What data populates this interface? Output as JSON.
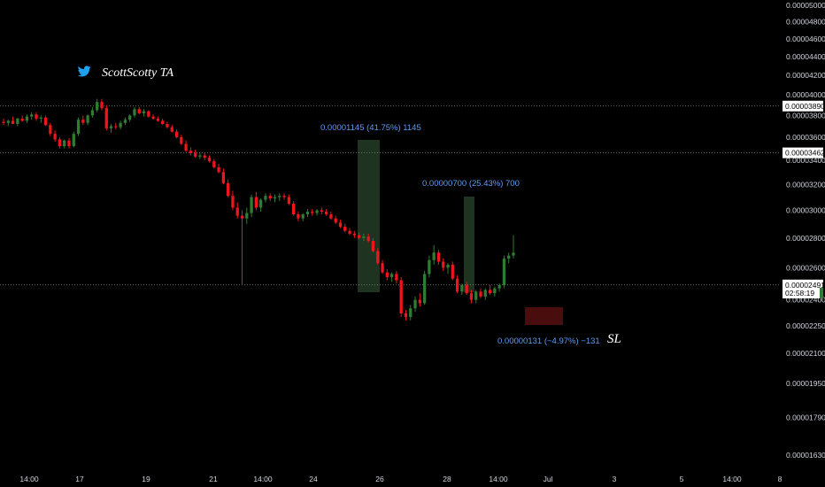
{
  "brand": {
    "name": "ScottScotty TA",
    "icon": "twitter-bird-icon",
    "icon_color": "#1da1f2"
  },
  "colors": {
    "up": "#2e7d32",
    "down": "#f2141c",
    "anno": "#5b9cf6",
    "zone_green": "#1e3320",
    "zone_red": "#4a0d0d"
  },
  "chart_data": {
    "type": "candlestick",
    "title": "",
    "xlabel": "",
    "ylabel": "",
    "y_axis_scale": "log",
    "y_ticks": [
      "0.00005000",
      "0.00004800",
      "0.00004600",
      "0.00004400",
      "0.00004200",
      "0.00004000",
      "0.00003800",
      "0.00003600",
      "0.00003400",
      "0.00003200",
      "0.00003000",
      "0.00002800",
      "0.00002600",
      "0.00002400",
      "0.00002250",
      "0.00002100",
      "0.00001950",
      "0.00001790",
      "0.00001630"
    ],
    "x_ticks": [
      "14:00",
      "17",
      "19",
      "21",
      "14:00",
      "24",
      "26",
      "28",
      "14:00",
      "Jul",
      "3",
      "5",
      "14:00",
      "8"
    ],
    "price_lines": [
      {
        "label": "0.00003890",
        "value": 3.89e-05
      },
      {
        "label": "0.00003462",
        "value": 3.462e-05
      },
      {
        "label": "0.00002491",
        "value": 2.491e-05
      }
    ],
    "current_time_label": "02:58:19",
    "annotations": [
      {
        "label": "0.00001145 (41.75%) 1145"
      },
      {
        "label": "0.00000700 (25.43%) 700"
      },
      {
        "label": "0.00000131 (−4.97%) −131"
      }
    ],
    "sl_label": "SL",
    "candles": [
      [
        3.74e-05,
        3.77e-05,
        3.71e-05,
        3.73e-05
      ],
      [
        3.73e-05,
        3.76e-05,
        3.7e-05,
        3.75e-05
      ],
      [
        3.75e-05,
        3.79e-05,
        3.72e-05,
        3.72e-05
      ],
      [
        3.72e-05,
        3.78e-05,
        3.7e-05,
        3.77e-05
      ],
      [
        3.77e-05,
        3.8e-05,
        3.74e-05,
        3.75e-05
      ],
      [
        3.75e-05,
        3.81e-05,
        3.73e-05,
        3.79e-05
      ],
      [
        3.79e-05,
        3.83e-05,
        3.76e-05,
        3.81e-05
      ],
      [
        3.81e-05,
        3.83e-05,
        3.75e-05,
        3.77e-05
      ],
      [
        3.77e-05,
        3.8e-05,
        3.73e-05,
        3.78e-05
      ],
      [
        3.78e-05,
        3.8e-05,
        3.7e-05,
        3.71e-05
      ],
      [
        3.71e-05,
        3.73e-05,
        3.61e-05,
        3.63e-05
      ],
      [
        3.63e-05,
        3.66e-05,
        3.56e-05,
        3.58e-05
      ],
      [
        3.58e-05,
        3.6e-05,
        3.5e-05,
        3.52e-05
      ],
      [
        3.52e-05,
        3.58e-05,
        3.5e-05,
        3.57e-05
      ],
      [
        3.57e-05,
        3.59e-05,
        3.5e-05,
        3.52e-05
      ],
      [
        3.52e-05,
        3.65e-05,
        3.51e-05,
        3.63e-05
      ],
      [
        3.63e-05,
        3.78e-05,
        3.61e-05,
        3.76e-05
      ],
      [
        3.76e-05,
        3.8e-05,
        3.71e-05,
        3.73e-05
      ],
      [
        3.73e-05,
        3.81e-05,
        3.71e-05,
        3.8e-05
      ],
      [
        3.8e-05,
        3.88e-05,
        3.78e-05,
        3.85e-05
      ],
      [
        3.85e-05,
        3.96e-05,
        3.83e-05,
        3.93e-05
      ],
      [
        3.93e-05,
        3.96e-05,
        3.85e-05,
        3.87e-05
      ],
      [
        3.87e-05,
        3.9e-05,
        3.66e-05,
        3.68e-05
      ],
      [
        3.68e-05,
        3.72e-05,
        3.64e-05,
        3.7e-05
      ],
      [
        3.7e-05,
        3.73e-05,
        3.67e-05,
        3.69e-05
      ],
      [
        3.69e-05,
        3.75e-05,
        3.67e-05,
        3.73e-05
      ],
      [
        3.73e-05,
        3.78e-05,
        3.71e-05,
        3.76e-05
      ],
      [
        3.76e-05,
        3.81e-05,
        3.74e-05,
        3.8e-05
      ],
      [
        3.8e-05,
        3.88e-05,
        3.78e-05,
        3.86e-05
      ],
      [
        3.86e-05,
        3.88e-05,
        3.81e-05,
        3.82e-05
      ],
      [
        3.82e-05,
        3.86e-05,
        3.79e-05,
        3.84e-05
      ],
      [
        3.84e-05,
        3.85e-05,
        3.78e-05,
        3.79e-05
      ],
      [
        3.79e-05,
        3.81e-05,
        3.76e-05,
        3.77e-05
      ],
      [
        3.77e-05,
        3.79e-05,
        3.74e-05,
        3.75e-05
      ],
      [
        3.75e-05,
        3.77e-05,
        3.71e-05,
        3.72e-05
      ],
      [
        3.72e-05,
        3.74e-05,
        3.68e-05,
        3.69e-05
      ],
      [
        3.69e-05,
        3.71e-05,
        3.64e-05,
        3.65e-05
      ],
      [
        3.65e-05,
        3.67e-05,
        3.59e-05,
        3.6e-05
      ],
      [
        3.6e-05,
        3.62e-05,
        3.53e-05,
        3.54e-05
      ],
      [
        3.54e-05,
        3.57e-05,
        3.47e-05,
        3.48e-05
      ],
      [
        3.48e-05,
        3.51e-05,
        3.44e-05,
        3.46e-05
      ],
      [
        3.46e-05,
        3.49e-05,
        3.42e-05,
        3.43e-05
      ],
      [
        3.43e-05,
        3.46e-05,
        3.41e-05,
        3.44e-05
      ],
      [
        3.44e-05,
        3.46e-05,
        3.4e-05,
        3.42e-05
      ],
      [
        3.42e-05,
        3.44e-05,
        3.38e-05,
        3.39e-05
      ],
      [
        3.39e-05,
        3.41e-05,
        3.33e-05,
        3.34e-05
      ],
      [
        3.34e-05,
        3.37e-05,
        3.29e-05,
        3.3e-05
      ],
      [
        3.3e-05,
        3.33e-05,
        3.2e-05,
        3.21e-05
      ],
      [
        3.21e-05,
        3.24e-05,
        3.1e-05,
        3.11e-05
      ],
      [
        3.11e-05,
        3.15e-05,
        3e-05,
        3.02e-05
      ],
      [
        3.02e-05,
        3.06e-05,
        2.94e-05,
        2.96e-05
      ],
      [
        2.96e-05,
        3e-05,
        2.49e-05,
        2.94e-05
      ],
      [
        2.94e-05,
        3.02e-05,
        2.9e-05,
        2.98e-05
      ],
      [
        2.98e-05,
        3.12e-05,
        2.95e-05,
        3.1e-05
      ],
      [
        3.1e-05,
        3.14e-05,
        3e-05,
        3.02e-05
      ],
      [
        3.02e-05,
        3.09e-05,
        2.99e-05,
        3.08e-05
      ],
      [
        3.08e-05,
        3.13e-05,
        3.06e-05,
        3.11e-05
      ],
      [
        3.11e-05,
        3.13e-05,
        3.07e-05,
        3.09e-05
      ],
      [
        3.09e-05,
        3.12e-05,
        3.06e-05,
        3.1e-05
      ],
      [
        3.1e-05,
        3.13e-05,
        3.07e-05,
        3.11e-05
      ],
      [
        3.11e-05,
        3.13e-05,
        3.08e-05,
        3.1e-05
      ],
      [
        3.1e-05,
        3.12e-05,
        3.04e-05,
        3.05e-05
      ],
      [
        3.05e-05,
        3.07e-05,
        2.96e-05,
        2.97e-05
      ],
      [
        2.97e-05,
        2.99e-05,
        2.92e-05,
        2.94e-05
      ],
      [
        2.94e-05,
        2.98e-05,
        2.92e-05,
        2.97e-05
      ],
      [
        2.97e-05,
        3.01e-05,
        2.95e-05,
        2.99e-05
      ],
      [
        2.99e-05,
        3.01e-05,
        2.96e-05,
        2.98e-05
      ],
      [
        2.98e-05,
        3.01e-05,
        2.96e-05,
        3e-05
      ],
      [
        3e-05,
        3.02e-05,
        2.97e-05,
        2.99e-05
      ],
      [
        2.99e-05,
        3.01e-05,
        2.96e-05,
        2.97e-05
      ],
      [
        2.97e-05,
        2.99e-05,
        2.93e-05,
        2.94e-05
      ],
      [
        2.94e-05,
        2.96e-05,
        2.9e-05,
        2.91e-05
      ],
      [
        2.91e-05,
        2.93e-05,
        2.87e-05,
        2.88e-05
      ],
      [
        2.88e-05,
        2.9e-05,
        2.84e-05,
        2.85e-05
      ],
      [
        2.85e-05,
        2.87e-05,
        2.82e-05,
        2.83e-05
      ],
      [
        2.83e-05,
        2.85e-05,
        2.8e-05,
        2.82e-05
      ],
      [
        2.82e-05,
        2.84e-05,
        2.79e-05,
        2.8e-05
      ],
      [
        2.8e-05,
        2.83e-05,
        2.78e-05,
        2.81e-05
      ],
      [
        2.81e-05,
        2.83e-05,
        2.77e-05,
        2.78e-05
      ],
      [
        2.78e-05,
        2.8e-05,
        2.7e-05,
        2.71e-05
      ],
      [
        2.71e-05,
        2.73e-05,
        2.62e-05,
        2.63e-05
      ],
      [
        2.63e-05,
        2.65e-05,
        2.56e-05,
        2.57e-05
      ],
      [
        2.57e-05,
        2.59e-05,
        2.52e-05,
        2.54e-05
      ],
      [
        2.54e-05,
        2.57e-05,
        2.51e-05,
        2.56e-05
      ],
      [
        2.56e-05,
        2.58e-05,
        2.5e-05,
        2.52e-05
      ],
      [
        2.52e-05,
        2.54e-05,
        2.3e-05,
        2.32e-05
      ],
      [
        2.32e-05,
        2.34e-05,
        2.28e-05,
        2.3e-05
      ],
      [
        2.3e-05,
        2.37e-05,
        2.28e-05,
        2.35e-05
      ],
      [
        2.35e-05,
        2.42e-05,
        2.33e-05,
        2.4e-05
      ],
      [
        2.4e-05,
        2.44e-05,
        2.36e-05,
        2.38e-05
      ],
      [
        2.38e-05,
        2.58e-05,
        2.37e-05,
        2.56e-05
      ],
      [
        2.56e-05,
        2.68e-05,
        2.54e-05,
        2.65e-05
      ],
      [
        2.65e-05,
        2.75e-05,
        2.62e-05,
        2.7e-05
      ],
      [
        2.7e-05,
        2.72e-05,
        2.62e-05,
        2.64e-05
      ],
      [
        2.64e-05,
        2.66e-05,
        2.58e-05,
        2.6e-05
      ],
      [
        2.6e-05,
        2.63e-05,
        2.56e-05,
        2.62e-05
      ],
      [
        2.62e-05,
        2.64e-05,
        2.52e-05,
        2.53e-05
      ],
      [
        2.53e-05,
        2.55e-05,
        2.44e-05,
        2.45e-05
      ],
      [
        2.45e-05,
        2.5e-05,
        2.43e-05,
        2.49e-05
      ],
      [
        2.49e-05,
        2.51e-05,
        2.43e-05,
        2.44e-05
      ],
      [
        2.44e-05,
        2.46e-05,
        2.38e-05,
        2.4e-05
      ],
      [
        2.4e-05,
        2.46e-05,
        2.38e-05,
        2.45e-05
      ],
      [
        2.45e-05,
        2.47e-05,
        2.41e-05,
        2.42e-05
      ],
      [
        2.42e-05,
        2.47e-05,
        2.4e-05,
        2.46e-05
      ],
      [
        2.46e-05,
        2.49e-05,
        2.43e-05,
        2.44e-05
      ],
      [
        2.44e-05,
        2.48e-05,
        2.42e-05,
        2.47e-05
      ],
      [
        2.47e-05,
        2.5e-05,
        2.45e-05,
        2.49e-05
      ],
      [
        2.49e-05,
        2.68e-05,
        2.47e-05,
        2.66e-05
      ],
      [
        2.66e-05,
        2.7e-05,
        2.63e-05,
        2.68e-05
      ],
      [
        2.68e-05,
        2.82e-05,
        2.66e-05,
        2.7e-05
      ]
    ]
  }
}
